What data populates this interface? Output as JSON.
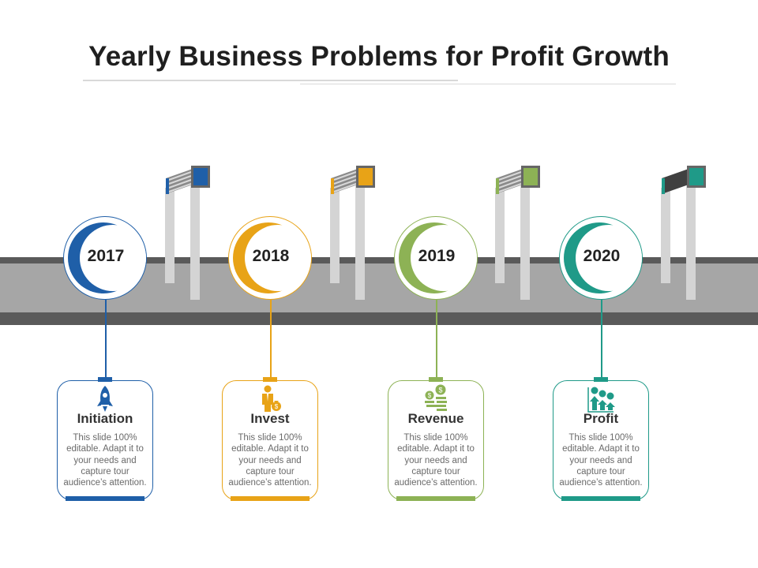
{
  "title": "Yearly Business Problems for Profit Growth",
  "milestones": [
    {
      "year": "2017",
      "title": "Initiation",
      "text": "This slide 100% editable. Adapt it to your needs and capture tour audience’s attention.",
      "color": "#1f5fa8",
      "icon": "rocket-icon"
    },
    {
      "year": "2018",
      "title": "Invest",
      "text": "This slide 100% editable. Adapt it to your needs and capture tour audience’s attention.",
      "color": "#e8a317",
      "icon": "businessman-money-bag-icon"
    },
    {
      "year": "2019",
      "title": "Revenue",
      "text": "This slide 100% editable. Adapt it to your needs and capture tour audience’s attention.",
      "color": "#8db255",
      "icon": "dollar-coins-icon"
    },
    {
      "year": "2020",
      "title": "Profit",
      "text": "This slide 100% editable. Adapt it to your needs and capture tour audience’s attention.",
      "color": "#1f9a88",
      "icon": "growth-arrows-icon"
    }
  ],
  "colors": {
    "road_dark": "#5a5a5a",
    "road_mid": "#a6a6a6",
    "pole": "#d4d4d4",
    "sign_frame": "#666666"
  }
}
